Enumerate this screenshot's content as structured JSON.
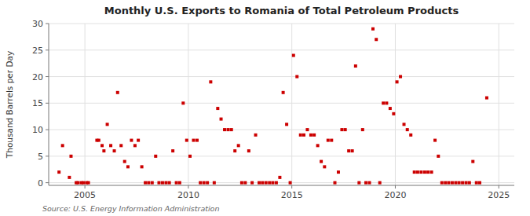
{
  "chart_data": {
    "type": "scatter",
    "title": "Monthly U.S. Exports to Romania of Total Petroleum Products",
    "y_label": "Thousand Barrels per Day",
    "annotations": [
      "Source: U.S. Energy Information Administration"
    ],
    "color": "#cc0000",
    "marker": "square",
    "grid": true,
    "xlim": [
      2003.25,
      2025.75
    ],
    "ylim": [
      -0.5,
      30
    ],
    "xticks": [
      2005,
      2010,
      2015,
      2020,
      2025
    ],
    "yticks": [
      0,
      5,
      10,
      15,
      20,
      25,
      30
    ],
    "x": [
      2003.75,
      2003.92,
      2004.25,
      2004.33,
      2004.58,
      2004.67,
      2004.83,
      2004.92,
      2005.08,
      2005.17,
      2005.58,
      2005.67,
      2005.83,
      2005.92,
      2006.08,
      2006.25,
      2006.42,
      2006.58,
      2006.75,
      2006.92,
      2007.08,
      2007.25,
      2007.42,
      2007.58,
      2007.75,
      2007.92,
      2008.08,
      2008.25,
      2008.42,
      2008.58,
      2008.75,
      2008.92,
      2009.08,
      2009.25,
      2009.42,
      2009.58,
      2009.75,
      2009.92,
      2010.08,
      2010.25,
      2010.42,
      2010.58,
      2010.75,
      2010.92,
      2011.08,
      2011.25,
      2011.42,
      2011.58,
      2011.75,
      2011.92,
      2012.08,
      2012.25,
      2012.42,
      2012.58,
      2012.75,
      2012.92,
      2013.08,
      2013.25,
      2013.42,
      2013.58,
      2013.75,
      2013.92,
      2014.08,
      2014.25,
      2014.42,
      2014.58,
      2014.75,
      2014.92,
      2015.08,
      2015.25,
      2015.42,
      2015.58,
      2015.75,
      2015.92,
      2016.08,
      2016.25,
      2016.42,
      2016.58,
      2016.75,
      2016.92,
      2017.08,
      2017.25,
      2017.42,
      2017.58,
      2017.75,
      2017.92,
      2018.08,
      2018.25,
      2018.42,
      2018.58,
      2018.75,
      2018.92,
      2019.08,
      2019.25,
      2019.42,
      2019.58,
      2019.75,
      2019.92,
      2020.08,
      2020.25,
      2020.42,
      2020.58,
      2020.75,
      2020.92,
      2021.08,
      2021.25,
      2021.42,
      2021.58,
      2021.75,
      2021.92,
      2022.08,
      2022.25,
      2022.42,
      2022.58,
      2022.75,
      2022.92,
      2023.08,
      2023.25,
      2023.42,
      2023.58,
      2023.75,
      2023.92,
      2024.08,
      2024.42
    ],
    "values": [
      2,
      7,
      1,
      5,
      0,
      0,
      0,
      0,
      0,
      0,
      8,
      8,
      7,
      6,
      11,
      7,
      6,
      17,
      7,
      4,
      3,
      8,
      7,
      8,
      3,
      0,
      0,
      0,
      5,
      0,
      0,
      0,
      0,
      6,
      0,
      0,
      15,
      8,
      5,
      8,
      8,
      0,
      0,
      0,
      19,
      0,
      14,
      12,
      10,
      10,
      10,
      6,
      7,
      0,
      0,
      6,
      0,
      9,
      0,
      0,
      0,
      0,
      0,
      0,
      1,
      17,
      11,
      0,
      24,
      20,
      9,
      9,
      10,
      9,
      9,
      7,
      4,
      3,
      8,
      8,
      0,
      2,
      10,
      10,
      6,
      6,
      22,
      0,
      10,
      0,
      0,
      29,
      27,
      0,
      15,
      15,
      14,
      13,
      19,
      20,
      11,
      10,
      9,
      2,
      2,
      2,
      2,
      2,
      2,
      8,
      5,
      0,
      0,
      0,
      0,
      0,
      0,
      0,
      0,
      0,
      4,
      0,
      0,
      16
    ]
  }
}
